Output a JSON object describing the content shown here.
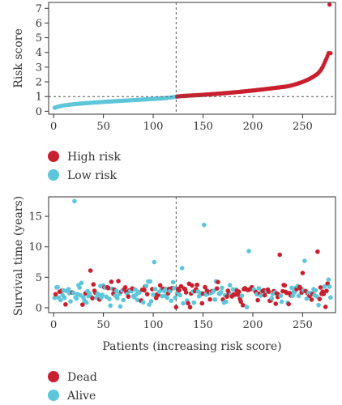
{
  "colors": {
    "high": "#c8202e",
    "low": "#5ec6da",
    "dead": "#c8202e",
    "alive": "#5ec6da",
    "axis": "#333333"
  },
  "chart_data": [
    {
      "type": "scatter",
      "ylabel": "Risk score",
      "xlabel": "",
      "xlim": [
        -5,
        283
      ],
      "ylim": [
        -0.2,
        7.4
      ],
      "x_ticks": [
        0,
        50,
        100,
        150,
        200,
        250
      ],
      "y_ticks": [
        0,
        1,
        2,
        3,
        4,
        5,
        6,
        7
      ],
      "cutoff_x": 123,
      "cutoff_y": 1.0,
      "n_patients": 278,
      "n_low": 123,
      "series": [
        {
          "name": "Low risk",
          "color": "#5ec6da",
          "curve_x": [
            1,
            5,
            10,
            20,
            30,
            40,
            50,
            60,
            70,
            80,
            90,
            100,
            110,
            118,
            122
          ],
          "curve_y": [
            0.24,
            0.33,
            0.4,
            0.48,
            0.54,
            0.59,
            0.64,
            0.68,
            0.72,
            0.76,
            0.8,
            0.84,
            0.88,
            0.94,
            0.98
          ]
        },
        {
          "name": "High risk",
          "color": "#c8202e",
          "curve_x": [
            123,
            130,
            140,
            150,
            160,
            170,
            180,
            190,
            200,
            210,
            220,
            230,
            235,
            240,
            245,
            250,
            255,
            260,
            265,
            268,
            270,
            272,
            274,
            276
          ],
          "curve_y": [
            1.0,
            1.04,
            1.08,
            1.12,
            1.17,
            1.22,
            1.28,
            1.34,
            1.41,
            1.49,
            1.57,
            1.65,
            1.7,
            1.78,
            1.88,
            2.0,
            2.14,
            2.32,
            2.55,
            2.78,
            3.0,
            3.3,
            3.6,
            3.95
          ],
          "outliers_x": [
            277
          ],
          "outliers_y": [
            7.25
          ]
        }
      ],
      "legend": [
        "High risk",
        "Low risk"
      ],
      "legend_placement": "below"
    },
    {
      "type": "scatter",
      "ylabel": "Survival time (years)",
      "xlabel": "Patients (increasing risk score)",
      "xlim": [
        -5,
        283
      ],
      "ylim": [
        -0.8,
        18.2
      ],
      "x_ticks": [
        0,
        50,
        100,
        150,
        200,
        250
      ],
      "y_ticks": [
        0,
        5,
        10,
        15
      ],
      "cutoff_x": 123,
      "seed": 7,
      "n_patients": 278,
      "specials": [
        {
          "x": 21,
          "y": 17.5,
          "status": "Alive"
        },
        {
          "x": 151,
          "y": 13.6,
          "status": "Alive"
        },
        {
          "x": 196,
          "y": 9.3,
          "status": "Alive"
        },
        {
          "x": 265,
          "y": 9.2,
          "status": "Dead"
        },
        {
          "x": 227,
          "y": 8.7,
          "status": "Dead"
        },
        {
          "x": 252,
          "y": 7.7,
          "status": "Alive"
        },
        {
          "x": 101,
          "y": 7.5,
          "status": "Alive"
        },
        {
          "x": 129,
          "y": 6.5,
          "status": "Alive"
        },
        {
          "x": 37,
          "y": 6.1,
          "status": "Dead"
        },
        {
          "x": 250,
          "y": 5.7,
          "status": "Dead"
        }
      ],
      "series": [
        {
          "name": "Dead",
          "color": "#c8202e"
        },
        {
          "name": "Alive",
          "color": "#5ec6da"
        }
      ],
      "legend": [
        "Dead",
        "Alive"
      ],
      "legend_placement": "below"
    }
  ],
  "legend1": {
    "high": "High risk",
    "low": "Low risk"
  },
  "legend2": {
    "dead": "Dead",
    "alive": "Alive"
  }
}
